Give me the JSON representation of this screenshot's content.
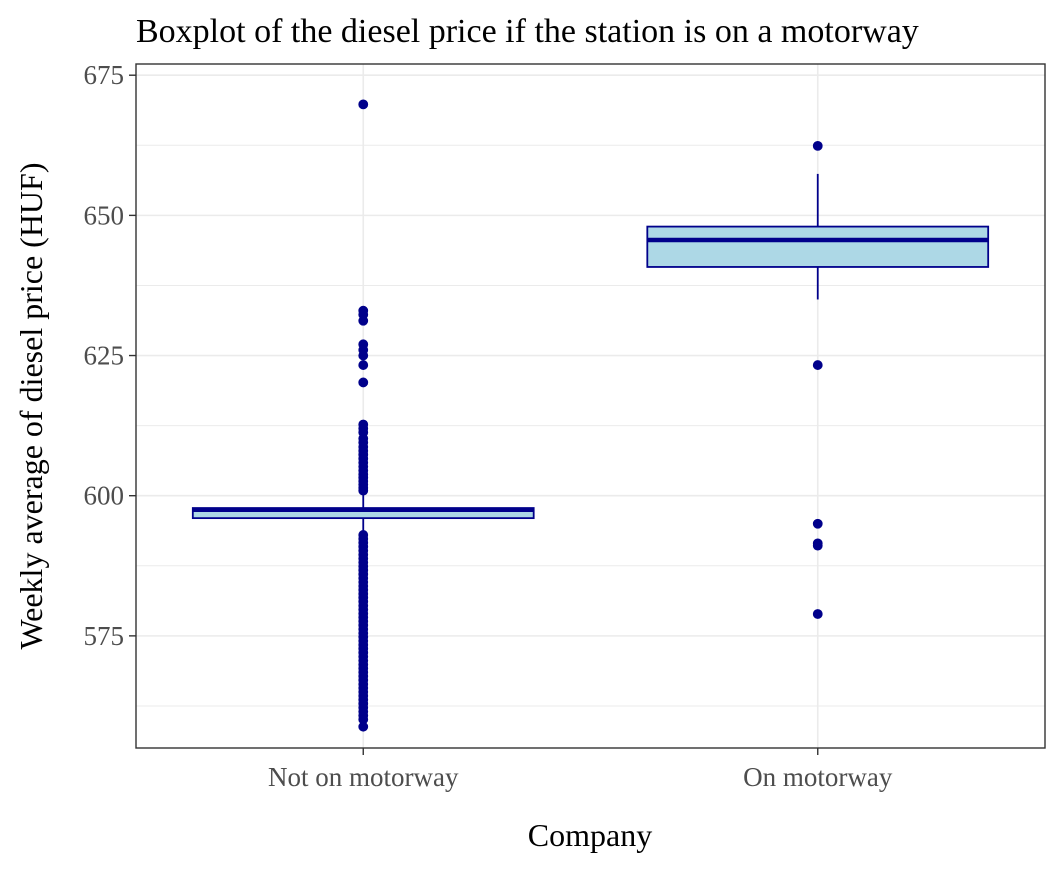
{
  "chart_data": {
    "type": "box",
    "title": "Boxplot of the diesel price if the station is on a motorway",
    "xlabel": "Company",
    "ylabel": "Weekly average of diesel price (HUF)",
    "categories": [
      "Not on motorway",
      "On motorway"
    ],
    "ylim": [
      555,
      677
    ],
    "yticks": [
      575,
      600,
      625,
      650,
      675
    ],
    "grid": true,
    "colors": {
      "box_fill": "#add8e6",
      "box_stroke": "#00008b",
      "point": "#00008b",
      "grid": "#ebebeb",
      "panel_border": "#333333"
    },
    "series": [
      {
        "category": "Not on motorway",
        "q1": 596.0,
        "median": 597.5,
        "q3": 597.8,
        "whisker_low": 593.5,
        "whisker_high": 600.3,
        "outliers": [
          669.8,
          633.0,
          632.3,
          631.2,
          627.0,
          626.0,
          625.0,
          623.3,
          620.2,
          612.7,
          612.0,
          611.3,
          610.2,
          609.5,
          608.7,
          608.0,
          607.3,
          606.6,
          605.9,
          605.2,
          604.5,
          603.8,
          603.2,
          602.6,
          602.0,
          601.4,
          600.9,
          593.0,
          592.3,
          591.6,
          590.9,
          590.2,
          589.5,
          588.8,
          588.1,
          587.4,
          586.7,
          586.0,
          585.3,
          584.6,
          583.9,
          583.2,
          582.5,
          581.8,
          581.1,
          580.4,
          579.7,
          579.0,
          578.3,
          577.6,
          576.9,
          576.2,
          575.5,
          574.8,
          574.1,
          573.4,
          572.7,
          572.0,
          571.3,
          570.6,
          569.9,
          569.2,
          568.5,
          567.8,
          567.1,
          566.4,
          565.7,
          565.0,
          564.3,
          563.6,
          562.9,
          562.2,
          561.5,
          560.8,
          560.1,
          558.8
        ]
      },
      {
        "category": "On motorway",
        "q1": 640.8,
        "median": 645.6,
        "q3": 648.0,
        "whisker_low": 635.0,
        "whisker_high": 657.4,
        "outliers": [
          662.4,
          623.3,
          595.0,
          591.5,
          591.1,
          578.9
        ]
      }
    ]
  }
}
